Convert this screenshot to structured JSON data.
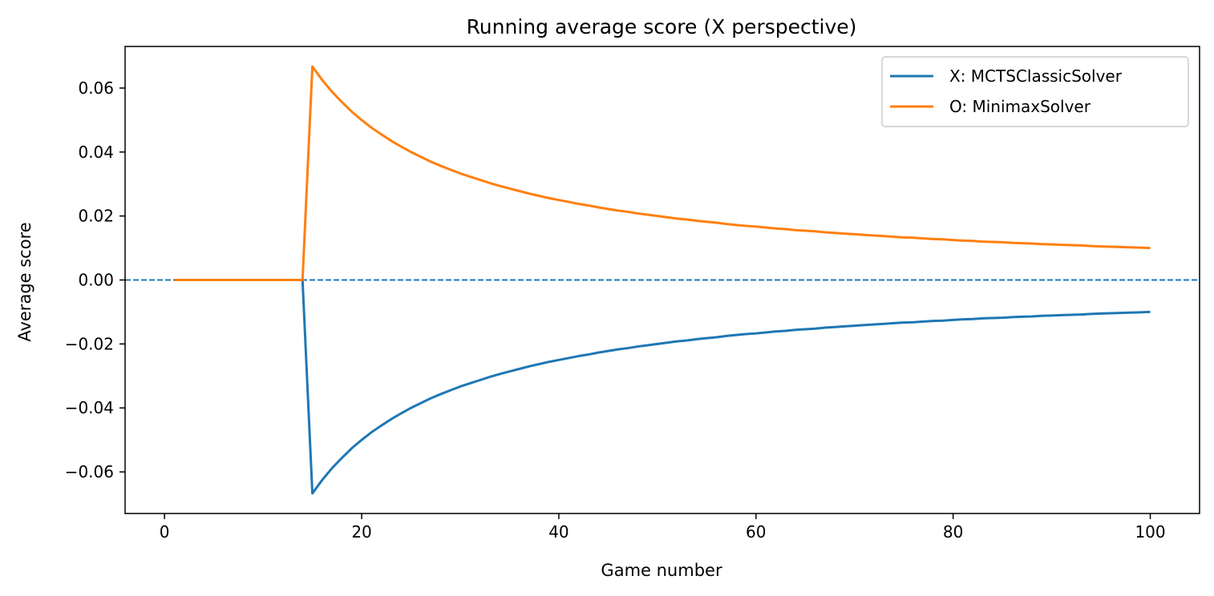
{
  "chart_data": {
    "type": "line",
    "title": "Running average score (X perspective)",
    "xlabel": "Game number",
    "ylabel": "Average score",
    "xlim": [
      -4,
      105
    ],
    "ylim": [
      -0.073,
      0.073
    ],
    "xticks": [
      0,
      20,
      40,
      60,
      80,
      100
    ],
    "xtick_labels": [
      "0",
      "20",
      "40",
      "60",
      "80",
      "100"
    ],
    "yticks": [
      -0.06,
      -0.04,
      -0.02,
      0.0,
      0.02,
      0.04,
      0.06
    ],
    "ytick_labels": [
      "−0.06",
      "−0.04",
      "−0.02",
      "0.00",
      "0.02",
      "0.04",
      "0.06"
    ],
    "grid": false,
    "legend_position": "top-right",
    "reference_line": {
      "y": 0.0,
      "style": "dashed",
      "color": "#1f77b4"
    },
    "x": [
      1,
      2,
      3,
      4,
      5,
      6,
      7,
      8,
      9,
      10,
      11,
      12,
      13,
      14,
      15,
      16,
      17,
      18,
      19,
      20,
      21,
      22,
      23,
      24,
      25,
      26,
      27,
      28,
      29,
      30,
      31,
      32,
      33,
      34,
      35,
      36,
      37,
      38,
      39,
      40,
      41,
      42,
      43,
      44,
      45,
      46,
      47,
      48,
      49,
      50,
      51,
      52,
      53,
      54,
      55,
      56,
      57,
      58,
      59,
      60,
      61,
      62,
      63,
      64,
      65,
      66,
      67,
      68,
      69,
      70,
      71,
      72,
      73,
      74,
      75,
      76,
      77,
      78,
      79,
      80,
      81,
      82,
      83,
      84,
      85,
      86,
      87,
      88,
      89,
      90,
      91,
      92,
      93,
      94,
      95,
      96,
      97,
      98,
      99,
      100
    ],
    "series": [
      {
        "name": "X: MCTSClassicSolver",
        "color": "#1f77b4",
        "values": [
          0,
          0,
          0,
          0,
          0,
          0,
          0,
          0,
          0,
          0,
          0,
          0,
          0,
          0,
          -0.0667,
          -0.0625,
          -0.0588,
          -0.0556,
          -0.0526,
          -0.05,
          -0.0476,
          -0.0455,
          -0.0435,
          -0.0417,
          -0.04,
          -0.0385,
          -0.037,
          -0.0357,
          -0.0345,
          -0.0333,
          -0.0323,
          -0.0313,
          -0.0303,
          -0.0294,
          -0.0286,
          -0.0278,
          -0.027,
          -0.0263,
          -0.0256,
          -0.025,
          -0.0244,
          -0.0238,
          -0.0233,
          -0.0227,
          -0.0222,
          -0.0217,
          -0.0213,
          -0.0208,
          -0.0204,
          -0.02,
          -0.0196,
          -0.0192,
          -0.0189,
          -0.0185,
          -0.0182,
          -0.0179,
          -0.0175,
          -0.0172,
          -0.0169,
          -0.0167,
          -0.0164,
          -0.0161,
          -0.0159,
          -0.0156,
          -0.0154,
          -0.0152,
          -0.0149,
          -0.0147,
          -0.0145,
          -0.0143,
          -0.0141,
          -0.0139,
          -0.0137,
          -0.0135,
          -0.0133,
          -0.0132,
          -0.013,
          -0.0128,
          -0.0127,
          -0.0125,
          -0.0123,
          -0.0122,
          -0.012,
          -0.0119,
          -0.0118,
          -0.0116,
          -0.0115,
          -0.0114,
          -0.0112,
          -0.0111,
          -0.011,
          -0.0109,
          -0.0108,
          -0.0106,
          -0.0105,
          -0.0104,
          -0.0103,
          -0.0102,
          -0.0101,
          -0.01
        ]
      },
      {
        "name": "O: MinimaxSolver",
        "color": "#ff7f0e",
        "values": [
          0,
          0,
          0,
          0,
          0,
          0,
          0,
          0,
          0,
          0,
          0,
          0,
          0,
          0,
          0.0667,
          0.0625,
          0.0588,
          0.0556,
          0.0526,
          0.05,
          0.0476,
          0.0455,
          0.0435,
          0.0417,
          0.04,
          0.0385,
          0.037,
          0.0357,
          0.0345,
          0.0333,
          0.0323,
          0.0313,
          0.0303,
          0.0294,
          0.0286,
          0.0278,
          0.027,
          0.0263,
          0.0256,
          0.025,
          0.0244,
          0.0238,
          0.0233,
          0.0227,
          0.0222,
          0.0217,
          0.0213,
          0.0208,
          0.0204,
          0.02,
          0.0196,
          0.0192,
          0.0189,
          0.0185,
          0.0182,
          0.0179,
          0.0175,
          0.0172,
          0.0169,
          0.0167,
          0.0164,
          0.0161,
          0.0159,
          0.0156,
          0.0154,
          0.0152,
          0.0149,
          0.0147,
          0.0145,
          0.0143,
          0.0141,
          0.0139,
          0.0137,
          0.0135,
          0.0133,
          0.0132,
          0.013,
          0.0128,
          0.0127,
          0.0125,
          0.0123,
          0.0122,
          0.012,
          0.0119,
          0.0118,
          0.0116,
          0.0115,
          0.0114,
          0.0112,
          0.0111,
          0.011,
          0.0109,
          0.0108,
          0.0106,
          0.0105,
          0.0104,
          0.0103,
          0.0102,
          0.0101,
          0.01
        ]
      }
    ]
  }
}
